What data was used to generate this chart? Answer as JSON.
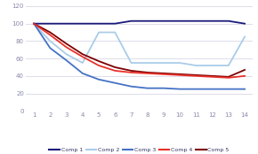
{
  "x": [
    1,
    2,
    3,
    4,
    5,
    6,
    7,
    8,
    9,
    10,
    11,
    12,
    13,
    14
  ],
  "comp1": [
    100,
    100,
    100,
    100,
    100,
    100,
    103,
    103,
    103,
    103,
    103,
    103,
    103,
    100
  ],
  "comp2": [
    100,
    80,
    65,
    55,
    90,
    90,
    55,
    55,
    55,
    55,
    52,
    52,
    52,
    85
  ],
  "comp3": [
    100,
    72,
    58,
    43,
    36,
    32,
    28,
    26,
    26,
    25,
    25,
    25,
    25,
    25
  ],
  "comp4": [
    100,
    87,
    73,
    62,
    52,
    46,
    44,
    43,
    42,
    41,
    40,
    39,
    38,
    40
  ],
  "comp5": [
    100,
    90,
    77,
    65,
    57,
    50,
    46,
    44,
    43,
    42,
    41,
    40,
    39,
    47
  ],
  "colors": {
    "comp1": "#1a1a7a",
    "comp2": "#aacce8",
    "comp3": "#4472c4",
    "comp4": "#e8312a",
    "comp5": "#7b0000"
  },
  "ylim": [
    0,
    120
  ],
  "yticks": [
    0,
    20,
    40,
    60,
    80,
    100,
    120
  ],
  "xticks": [
    1,
    2,
    3,
    4,
    5,
    6,
    7,
    8,
    9,
    10,
    11,
    12,
    13,
    14
  ],
  "legend_labels": [
    "Comp 1",
    "Comp 2",
    "Comp 3",
    "Comp 4",
    "Comp 5"
  ],
  "background_color": "#ffffff",
  "grid_color": "#d8d8e8",
  "linewidth": 1.3,
  "tick_color": "#8888aa",
  "tick_fontsize": 5.0
}
